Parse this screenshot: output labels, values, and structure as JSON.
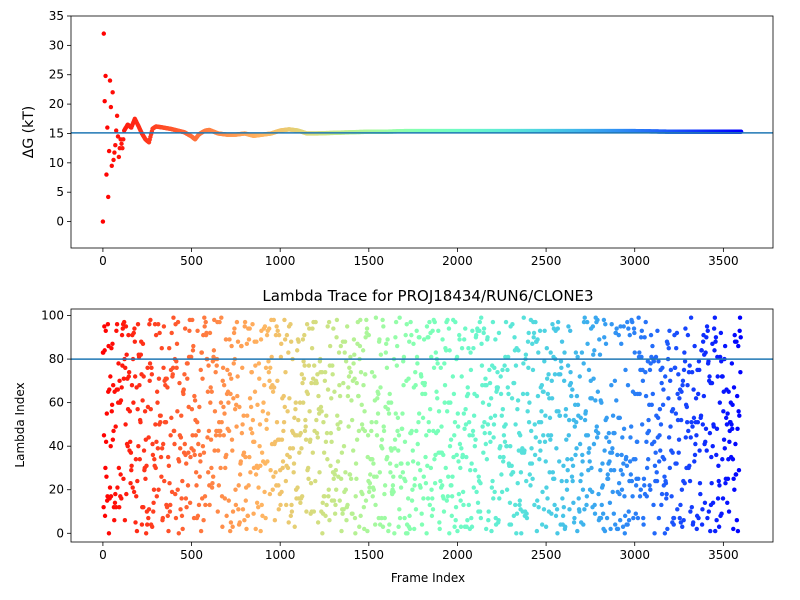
{
  "chart_data": [
    {
      "type": "scatter",
      "title": "",
      "xlabel": "",
      "ylabel": "ΔG (kT)",
      "xlim": [
        -180,
        3780
      ],
      "ylim": [
        -4.5,
        35
      ],
      "xticks": [
        0,
        500,
        1000,
        1500,
        2000,
        2500,
        3000,
        3500
      ],
      "yticks": [
        0,
        5,
        10,
        15,
        20,
        25,
        30,
        35
      ],
      "hline": 15.1,
      "hline_color": "#1f77b4",
      "colormap": "rainbow",
      "frame_count": 3600,
      "grid": false,
      "legend": "none",
      "series": [
        {
          "x": [
            0,
            5,
            10,
            15,
            20,
            25,
            30,
            35,
            40,
            45,
            50,
            55,
            60,
            70,
            80,
            90,
            100,
            110,
            120,
            140,
            160,
            180,
            200,
            220,
            240,
            260,
            280,
            300,
            340,
            380,
            420,
            460,
            500,
            520,
            540,
            560,
            580,
            600,
            650,
            700,
            750,
            800,
            850,
            900,
            950,
            1000,
            1050,
            1100,
            1150,
            1200,
            1300,
            1400,
            1500,
            1600,
            1700,
            1800,
            1900,
            2000,
            2200,
            2400,
            2600,
            2800,
            3000,
            3200,
            3400,
            3600
          ],
          "y": [
            0.0,
            32.0,
            20.5,
            24.8,
            8.0,
            16.0,
            4.2,
            12.0,
            24.0,
            19.5,
            9.5,
            22.0,
            10.5,
            13.0,
            18.0,
            11.0,
            14.0,
            12.5,
            15.5,
            16.5,
            16.0,
            17.5,
            16.3,
            15.0,
            14.0,
            13.5,
            15.8,
            16.2,
            16.0,
            15.8,
            15.5,
            15.2,
            14.5,
            14.0,
            14.8,
            15.2,
            15.5,
            15.6,
            15.0,
            14.8,
            14.8,
            15.0,
            14.6,
            14.8,
            15.0,
            15.5,
            15.7,
            15.5,
            15.0,
            15.0,
            15.1,
            15.2,
            15.3,
            15.3,
            15.4,
            15.4,
            15.4,
            15.4,
            15.4,
            15.4,
            15.4,
            15.4,
            15.4,
            15.3,
            15.3,
            15.3
          ]
        }
      ]
    },
    {
      "type": "scatter",
      "title": "Lambda Trace for PROJ18434/RUN6/CLONE3",
      "xlabel": "Frame Index",
      "ylabel": "Lambda Index",
      "xlim": [
        -180,
        3780
      ],
      "ylim": [
        -4,
        103
      ],
      "xticks": [
        0,
        500,
        1000,
        1500,
        2000,
        2500,
        3000,
        3500
      ],
      "yticks": [
        0,
        20,
        40,
        60,
        80,
        100
      ],
      "hline": 80,
      "hline_color": "#1f77b4",
      "colormap": "rainbow",
      "frame_count": 3600,
      "lambda_range": [
        0,
        99
      ],
      "grid": false,
      "legend": "none"
    }
  ]
}
